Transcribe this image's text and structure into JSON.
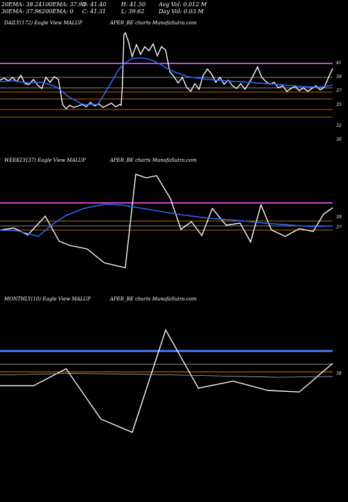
{
  "stats": {
    "row1": [
      "20EMA: 38.24",
      "100EMA: 37.93",
      "O: 41.40",
      "H: 41.50",
      "Avg Vol: 0.012  M"
    ],
    "row2": [
      "30EMA: 37.96",
      "200EMA: 0",
      "C: 41.31",
      "L: 39.62",
      "Day Vol: 0.03 M"
    ]
  },
  "panels": [
    {
      "label_left": "DAILY(172) Eagle   View  MALUP",
      "label_right": "APER_BE charts MunafaSutra.com"
    },
    {
      "label_left": "WEEKLY(37) Eagle   View  MALUP",
      "label_right": "APER_BE charts MunafaSutra.com"
    },
    {
      "label_left": "MONTHLY(10) Eagle   View  MALUP",
      "label_right": "APER_BE charts MunafaSutra.com"
    }
  ],
  "colors": {
    "price": "#ffffff",
    "ema": "#3366ff",
    "resistance": "#cc44cc",
    "support": "#ff8c00",
    "hline": "#bbbbbb",
    "monthly_band": "#4477ee"
  },
  "chart_data": [
    {
      "type": "line",
      "title": "DAILY(172) Eagle View MALUPAPER_BE",
      "ylim": [
        28,
        46
      ],
      "tick_labels": [
        "41",
        "39",
        "37",
        "35",
        "32",
        "30"
      ],
      "tick_values": [
        41,
        39,
        37,
        35,
        32,
        30
      ],
      "hlines": [
        {
          "value": 40.9,
          "style": "resistance"
        },
        {
          "value": 38.9,
          "style": "hline"
        },
        {
          "value": 37.4,
          "style": "hline"
        },
        {
          "value": 36.8,
          "style": "support"
        },
        {
          "value": 35.8,
          "style": "support"
        },
        {
          "value": 34.3,
          "style": "support"
        },
        {
          "value": 33.2,
          "style": "support"
        }
      ],
      "series": [
        {
          "style": "price",
          "x": [
            0,
            6,
            12,
            18,
            24,
            30,
            36,
            42,
            48,
            54,
            60,
            66,
            72,
            78,
            84,
            90,
            95,
            100,
            106,
            112,
            118,
            124,
            130,
            136,
            142,
            148,
            154,
            160,
            166,
            172,
            174,
            176,
            178,
            180,
            184,
            190,
            196,
            202,
            208,
            214,
            220,
            226,
            232,
            238,
            244,
            250,
            256,
            262,
            268,
            274,
            280,
            286,
            292,
            298,
            304,
            310,
            316,
            322,
            328,
            334,
            340,
            346,
            352,
            358,
            364,
            370,
            376,
            382,
            388,
            394,
            400,
            406,
            412,
            418,
            424,
            430,
            436,
            442,
            448,
            454,
            460,
            466,
            472,
            478
          ],
          "y": [
            38.5,
            38.8,
            38.4,
            38.9,
            38.3,
            39.2,
            38.0,
            37.9,
            38.6,
            37.8,
            37.3,
            38.9,
            38.2,
            39.0,
            38.6,
            35.0,
            34.4,
            34.9,
            34.6,
            34.8,
            35.0,
            34.7,
            35.3,
            34.8,
            35.1,
            34.6,
            34.9,
            35.2,
            34.7,
            35.0,
            34.9,
            38.0,
            45.0,
            45.3,
            44.2,
            41.9,
            43.6,
            42.2,
            43.3,
            42.7,
            43.7,
            42.0,
            43.3,
            42.8,
            39.7,
            39.0,
            38.1,
            38.9,
            37.5,
            36.9,
            38.0,
            37.2,
            39.2,
            40.1,
            39.4,
            38.2,
            38.9,
            37.9,
            38.5,
            37.7,
            37.3,
            38.0,
            37.2,
            38.1,
            39.2,
            40.4,
            38.9,
            38.3,
            37.9,
            38.2,
            37.4,
            37.7,
            36.9,
            37.3,
            37.6,
            37.0,
            37.4,
            36.9,
            37.3,
            37.7,
            37.1,
            37.5,
            38.9,
            40.2
          ]
        },
        {
          "style": "ema",
          "x": [
            0,
            20,
            40,
            60,
            80,
            100,
            120,
            140,
            150,
            160,
            170,
            180,
            190,
            200,
            210,
            220,
            230,
            240,
            250,
            270,
            290,
            310,
            340,
            370,
            400,
            430,
            460,
            478
          ],
          "y": [
            38.3,
            38.4,
            38.1,
            38.2,
            37.6,
            36.0,
            35.0,
            35.0,
            36.5,
            38.2,
            40.0,
            41.0,
            41.6,
            41.7,
            41.6,
            41.3,
            40.8,
            40.2,
            39.7,
            39.0,
            38.7,
            38.5,
            38.3,
            38.1,
            37.9,
            37.6,
            37.5,
            37.8
          ]
        }
      ]
    },
    {
      "type": "line",
      "title": "WEEKLY(37) Eagle View MALUPAPER_BE",
      "ylim": [
        28,
        46
      ],
      "tick_labels": [
        "39",
        "37"
      ],
      "tick_values": [
        38.9,
        37.4
      ],
      "hlines": [
        {
          "value": 40.9,
          "style": "resistance"
        },
        {
          "value": 38.3,
          "style": "support"
        },
        {
          "value": 37.6,
          "style": "hline"
        },
        {
          "value": 37.0,
          "style": "support"
        }
      ],
      "series": [
        {
          "style": "price",
          "x": [
            0,
            20,
            40,
            65,
            85,
            100,
            125,
            150,
            180,
            195,
            210,
            225,
            245,
            260,
            275,
            290,
            305,
            325,
            345,
            360,
            375,
            390,
            410,
            430,
            450,
            465,
            478
          ],
          "y": [
            37.0,
            37.3,
            36.3,
            39.0,
            35.4,
            34.8,
            34.3,
            32.3,
            31.6,
            45.0,
            44.5,
            44.8,
            41.5,
            37.1,
            38.2,
            36.2,
            40.1,
            37.7,
            38.0,
            35.3,
            40.6,
            37.0,
            36.1,
            37.2,
            36.8,
            39.3,
            40.2
          ]
        },
        {
          "style": "ema",
          "x": [
            0,
            25,
            55,
            75,
            95,
            120,
            150,
            175,
            200,
            230,
            260,
            300,
            340,
            380,
            420,
            450,
            478
          ],
          "y": [
            37.0,
            36.9,
            36.1,
            37.8,
            39.1,
            40.1,
            40.7,
            40.6,
            40.2,
            39.7,
            39.2,
            38.7,
            38.4,
            38.0,
            37.7,
            37.5,
            37.6
          ]
        }
      ]
    },
    {
      "type": "line",
      "title": "MONTHLY(10) Eagle View MALUPAPER_BE",
      "ylim": [
        28,
        46
      ],
      "tick_labels": [
        "38"
      ],
      "tick_values": [
        37.4
      ],
      "hlines": [
        {
          "value": 40.3,
          "style": "monthly_band"
        },
        {
          "value": 38.6,
          "style": "hline"
        },
        {
          "value": 37.6,
          "style": "support"
        }
      ],
      "series": [
        {
          "style": "price",
          "x": [
            0,
            48,
            95,
            145,
            190,
            238,
            285,
            335,
            385,
            430,
            478
          ],
          "y": [
            35.8,
            35.8,
            38.0,
            31.5,
            29.8,
            43.0,
            35.5,
            36.4,
            35.2,
            35.0,
            38.7
          ]
        },
        {
          "style": "hline",
          "x": [
            0,
            100,
            200,
            300,
            400,
            478
          ],
          "y": [
            37.2,
            37.4,
            37.3,
            37.1,
            36.9,
            37.0
          ]
        }
      ]
    }
  ]
}
